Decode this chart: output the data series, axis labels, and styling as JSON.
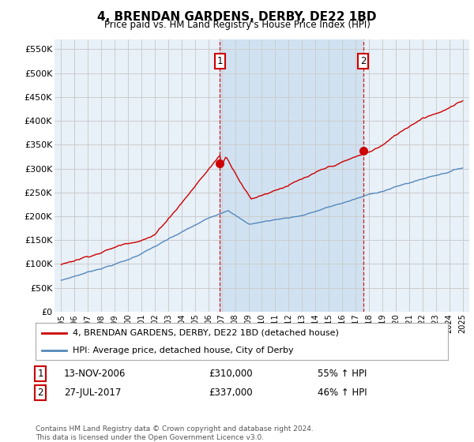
{
  "title": "4, BRENDAN GARDENS, DERBY, DE22 1BD",
  "subtitle": "Price paid vs. HM Land Registry's House Price Index (HPI)",
  "ylim": [
    0,
    570000
  ],
  "yticks": [
    0,
    50000,
    100000,
    150000,
    200000,
    250000,
    300000,
    350000,
    400000,
    450000,
    500000,
    550000
  ],
  "ytick_labels": [
    "£0",
    "£50K",
    "£100K",
    "£150K",
    "£200K",
    "£250K",
    "£300K",
    "£350K",
    "£400K",
    "£450K",
    "£500K",
    "£550K"
  ],
  "sale1_x": 2006.87,
  "sale1_y": 310000,
  "sale2_x": 2017.57,
  "sale2_y": 337000,
  "sale_color": "#cc0000",
  "hpi_color": "#5588bb",
  "shade_color": "#cce0f0",
  "vline_color": "#cc0000",
  "grid_color": "#cccccc",
  "plot_bg": "#e8f0f8",
  "legend_label_red": "4, BRENDAN GARDENS, DERBY, DE22 1BD (detached house)",
  "legend_label_blue": "HPI: Average price, detached house, City of Derby",
  "table_row1": [
    "1",
    "13-NOV-2006",
    "£310,000",
    "55% ↑ HPI"
  ],
  "table_row2": [
    "2",
    "27-JUL-2017",
    "£337,000",
    "46% ↑ HPI"
  ],
  "footnote": "Contains HM Land Registry data © Crown copyright and database right 2024.\nThis data is licensed under the Open Government Licence v3.0.",
  "xmin": 1994.5,
  "xmax": 2025.5,
  "xticks": [
    1995,
    1996,
    1997,
    1998,
    1999,
    2000,
    2001,
    2002,
    2003,
    2004,
    2005,
    2006,
    2007,
    2008,
    2009,
    2010,
    2011,
    2012,
    2013,
    2014,
    2015,
    2016,
    2017,
    2018,
    2019,
    2020,
    2021,
    2022,
    2023,
    2024,
    2025
  ]
}
